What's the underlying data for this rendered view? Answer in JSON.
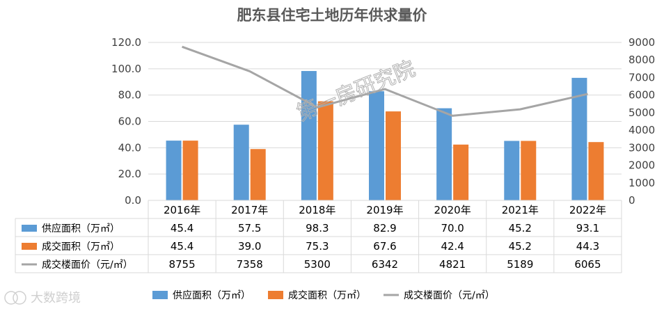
{
  "chart_data": {
    "type": "bar",
    "title": "肥东县住宅土地历年供求量价",
    "categories": [
      "2016年",
      "2017年",
      "2018年",
      "2019年",
      "2020年",
      "2021年",
      "2022年"
    ],
    "series": [
      {
        "name": "供应面积（万㎡）",
        "kind": "bar",
        "axis": "left",
        "color": "#5b9bd5",
        "values": [
          45.4,
          57.5,
          98.3,
          82.9,
          70.0,
          45.2,
          93.1
        ],
        "labels": [
          "45.4",
          "57.5",
          "98.3",
          "82.9",
          "70.0",
          "45.2",
          "93.1"
        ]
      },
      {
        "name": "成交面积（万㎡）",
        "kind": "bar",
        "axis": "left",
        "color": "#ed7d31",
        "values": [
          45.4,
          39.0,
          75.3,
          67.6,
          42.4,
          45.2,
          44.3
        ],
        "labels": [
          "45.4",
          "39.0",
          "75.3",
          "67.6",
          "42.4",
          "45.2",
          "44.3"
        ]
      },
      {
        "name": "成交楼面价（元/㎡）",
        "kind": "line",
        "axis": "right",
        "color": "#a5a5a5",
        "values": [
          8755,
          7358,
          5300,
          6342,
          4821,
          5189,
          6065
        ],
        "labels": [
          "8755",
          "7358",
          "5300",
          "6342",
          "4821",
          "5189",
          "6065"
        ]
      }
    ],
    "y_left": {
      "min": 0,
      "max": 120,
      "ticks": [
        "0.0",
        "20.0",
        "40.0",
        "60.0",
        "80.0",
        "100.0",
        "120.0"
      ]
    },
    "y_right": {
      "min": 0,
      "max": 9000,
      "ticks": [
        "0",
        "1000",
        "2000",
        "3000",
        "4000",
        "5000",
        "6000",
        "7000",
        "8000",
        "9000"
      ]
    },
    "data_table": true,
    "legend_position": "bottom",
    "grid": true
  },
  "watermark": "第一房研究院",
  "credit": "大数跨境"
}
